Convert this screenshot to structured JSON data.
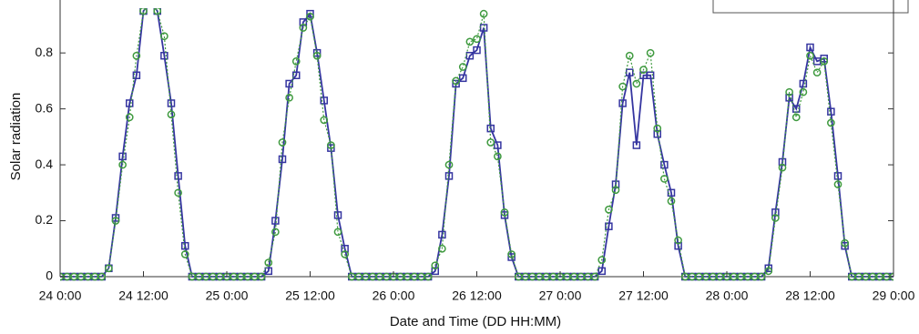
{
  "chart_data": {
    "type": "line",
    "xlabel": "Date and Time (DD HH:MM)",
    "ylabel": "Solar radiation",
    "x": [
      0,
      1,
      2,
      3,
      4,
      5,
      6,
      7,
      8,
      9,
      10,
      11,
      12,
      13,
      14,
      15,
      16,
      17,
      18,
      19,
      20,
      21,
      22,
      23,
      24,
      25,
      26,
      27,
      28,
      29,
      30,
      31,
      32,
      33,
      34,
      35,
      36,
      37,
      38,
      39,
      40,
      41,
      42,
      43,
      44,
      45,
      46,
      47,
      48,
      49,
      50,
      51,
      52,
      53,
      54,
      55,
      56,
      57,
      58,
      59,
      60,
      61,
      62,
      63,
      64,
      65,
      66,
      67,
      68,
      69,
      70,
      71,
      72,
      73,
      74,
      75,
      76,
      77,
      78,
      79,
      80,
      81,
      82,
      83,
      84,
      85,
      86,
      87,
      88,
      89,
      90,
      91,
      92,
      93,
      94,
      95,
      96,
      97,
      98,
      99,
      100,
      101,
      102,
      103,
      104,
      105,
      106,
      107,
      108,
      109,
      110,
      111,
      112,
      113,
      114,
      115,
      116,
      117,
      118,
      119,
      120
    ],
    "series": [
      {
        "color": "#3535a0",
        "marker": "square",
        "values": [
          0,
          0,
          0,
          0,
          0,
          0,
          0,
          0.03,
          0.21,
          0.43,
          0.62,
          0.72,
          0.95,
          0.98,
          0.95,
          0.79,
          0.62,
          0.36,
          0.11,
          0,
          0,
          0,
          0,
          0,
          0,
          0,
          0,
          0,
          0,
          0,
          0.02,
          0.2,
          0.42,
          0.69,
          0.72,
          0.91,
          0.94,
          0.8,
          0.63,
          0.46,
          0.22,
          0.1,
          0,
          0,
          0,
          0,
          0,
          0,
          0,
          0,
          0,
          0,
          0,
          0,
          0.02,
          0.15,
          0.36,
          0.69,
          0.71,
          0.79,
          0.81,
          0.89,
          0.53,
          0.47,
          0.22,
          0.07,
          0,
          0,
          0,
          0,
          0,
          0,
          0,
          0,
          0,
          0,
          0,
          0,
          0.02,
          0.18,
          0.33,
          0.62,
          0.73,
          0.47,
          0.72,
          0.72,
          0.51,
          0.4,
          0.3,
          0.11,
          0,
          0,
          0,
          0,
          0,
          0,
          0,
          0,
          0,
          0,
          0,
          0,
          0.03,
          0.23,
          0.41,
          0.64,
          0.6,
          0.69,
          0.82,
          0.77,
          0.78,
          0.59,
          0.36,
          0.11,
          0,
          0,
          0,
          0,
          0,
          0,
          0
        ]
      },
      {
        "color": "#3f9a3f",
        "marker": "circle",
        "values": [
          0,
          0,
          0,
          0,
          0,
          0,
          0,
          0.03,
          0.2,
          0.4,
          0.57,
          0.79,
          0.95,
          0.98,
          0.95,
          0.86,
          0.58,
          0.3,
          0.08,
          0,
          0,
          0,
          0,
          0,
          0,
          0,
          0,
          0,
          0,
          0,
          0.05,
          0.16,
          0.48,
          0.64,
          0.77,
          0.89,
          0.93,
          0.79,
          0.56,
          0.47,
          0.16,
          0.08,
          0,
          0,
          0,
          0,
          0,
          0,
          0,
          0,
          0,
          0,
          0,
          0,
          0.04,
          0.1,
          0.4,
          0.7,
          0.75,
          0.84,
          0.85,
          0.94,
          0.48,
          0.43,
          0.23,
          0.08,
          0,
          0,
          0,
          0,
          0,
          0,
          0,
          0,
          0,
          0,
          0,
          0,
          0.06,
          0.24,
          0.31,
          0.68,
          0.79,
          0.69,
          0.74,
          0.8,
          0.53,
          0.35,
          0.27,
          0.13,
          0,
          0,
          0,
          0,
          0,
          0,
          0,
          0,
          0,
          0,
          0,
          0,
          0.02,
          0.21,
          0.39,
          0.66,
          0.57,
          0.66,
          0.79,
          0.73,
          0.77,
          0.55,
          0.33,
          0.12,
          0,
          0,
          0,
          0,
          0,
          0,
          0
        ]
      }
    ],
    "xlim": [
      0,
      120
    ],
    "xticks": [
      {
        "value": 0,
        "label": "24 0:00"
      },
      {
        "value": 12,
        "label": "24 12:00"
      },
      {
        "value": 24,
        "label": "25 0:00"
      },
      {
        "value": 36,
        "label": "25 12:00"
      },
      {
        "value": 48,
        "label": "26 0:00"
      },
      {
        "value": 60,
        "label": "26 12:00"
      },
      {
        "value": 72,
        "label": "27 0:00"
      },
      {
        "value": 84,
        "label": "27 12:00"
      },
      {
        "value": 96,
        "label": "28 0:00"
      },
      {
        "value": 108,
        "label": "28 12:00"
      },
      {
        "value": 120,
        "label": "29 0:00"
      }
    ],
    "ylim": [
      0,
      0.96
    ],
    "yticks": [
      0,
      0.2,
      0.4,
      0.6,
      0.8
    ]
  }
}
